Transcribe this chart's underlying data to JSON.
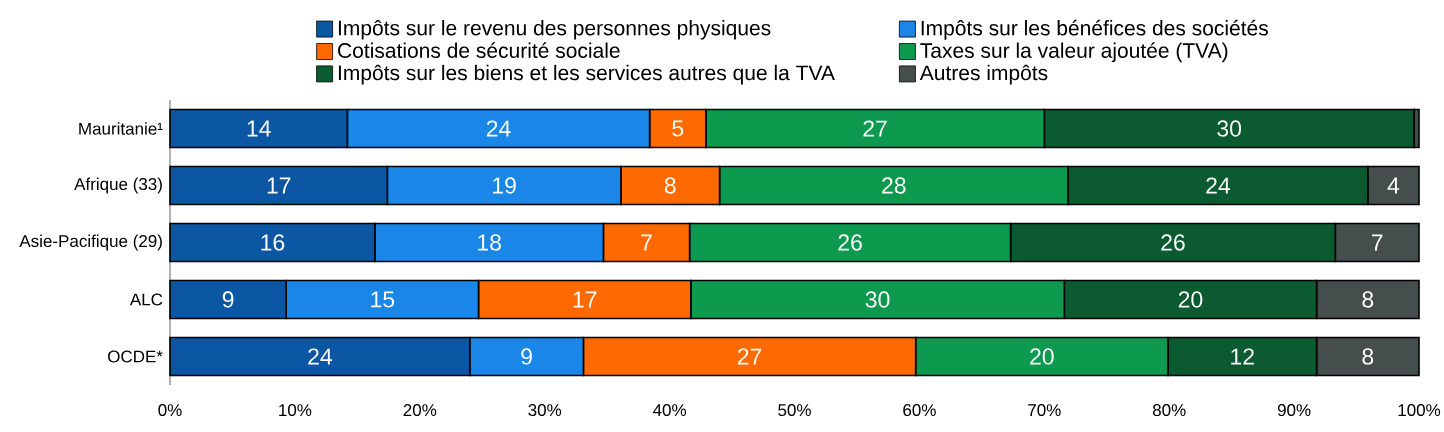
{
  "chart_data": {
    "type": "bar",
    "orientation": "horizontal",
    "stacked": true,
    "categories": [
      "Mauritanie¹",
      "Afrique (33)",
      "Asie-Pacifique (29)",
      "ALC",
      "OCDE*"
    ],
    "series": [
      {
        "name": "Impôts sur le revenu des personnes physiques",
        "color": "#0b57a4",
        "values": [
          14.2,
          17.4,
          16.4,
          9.3,
          24.0
        ],
        "value_labels": [
          "14",
          "17",
          "16",
          "9",
          "24"
        ]
      },
      {
        "name": "Impôts sur les bénéfices des sociétés",
        "color": "#1a86e8",
        "values": [
          24.2,
          18.7,
          18.3,
          15.4,
          9.1
        ],
        "value_labels": [
          "24",
          "19",
          "18",
          "15",
          "9"
        ]
      },
      {
        "name": "Cotisations de sécurité sociale",
        "color": "#ff6a00",
        "values": [
          4.5,
          7.9,
          6.9,
          17.0,
          26.6
        ],
        "value_labels": [
          "5",
          "8",
          "7",
          "17",
          "27"
        ]
      },
      {
        "name": "Taxes sur la valeur ajoutée (TVA)",
        "color": "#0d9a4e",
        "values": [
          27.1,
          27.9,
          25.7,
          29.9,
          20.2
        ],
        "value_labels": [
          "27",
          "28",
          "26",
          "30",
          "20"
        ]
      },
      {
        "name": "Impôts sur les biens et les services autres que la TVA",
        "color": "#0b5a30",
        "values": [
          29.6,
          24.0,
          26.0,
          20.2,
          11.9
        ],
        "value_labels": [
          "30",
          "24",
          "26",
          "20",
          "12"
        ]
      },
      {
        "name": "Autres impôts",
        "color": "#454d4d",
        "values": [
          0.4,
          4.1,
          6.7,
          8.2,
          8.2
        ],
        "value_labels": [
          null,
          "4",
          "7",
          "8",
          "8"
        ]
      }
    ],
    "xlim": [
      0,
      100
    ],
    "xticks": [
      {
        "value": 0,
        "label": "0%"
      },
      {
        "value": 10,
        "label": "10%"
      },
      {
        "value": 20,
        "label": "20%"
      },
      {
        "value": 30,
        "label": "30%"
      },
      {
        "value": 40,
        "label": "40%"
      },
      {
        "value": 50,
        "label": "50%"
      },
      {
        "value": 60,
        "label": "60%"
      },
      {
        "value": 70,
        "label": "70%"
      },
      {
        "value": 80,
        "label": "80%"
      },
      {
        "value": 90,
        "label": "90%"
      },
      {
        "value": 100,
        "label": "100%"
      }
    ],
    "legend": "top"
  }
}
